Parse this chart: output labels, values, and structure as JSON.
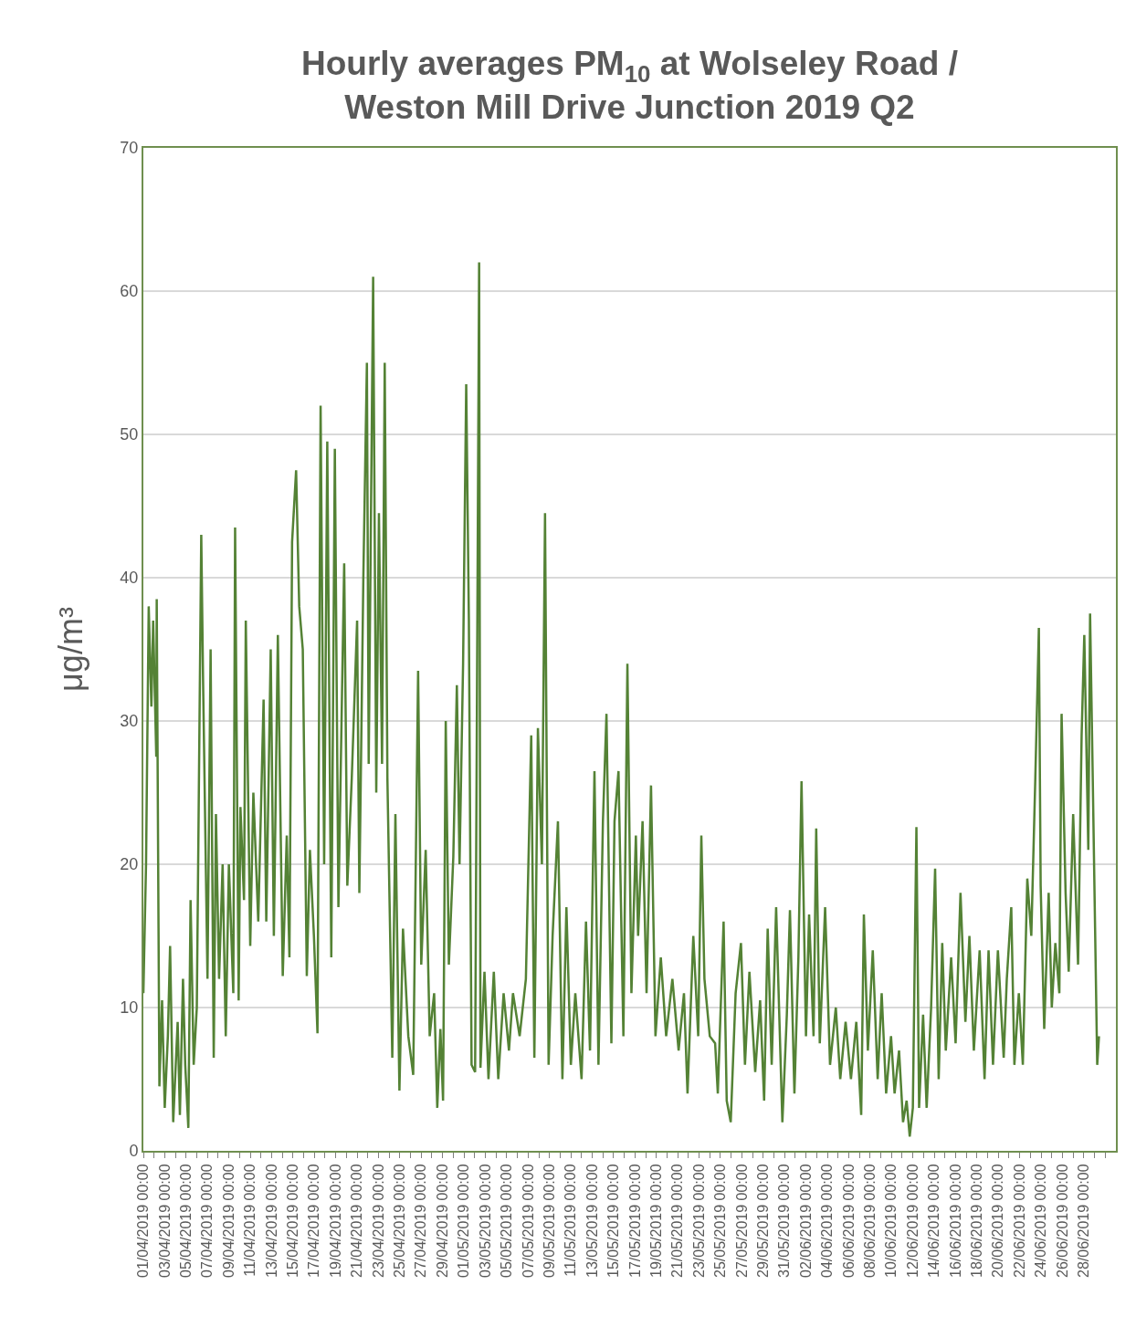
{
  "chart_data": {
    "type": "line",
    "title": "Hourly averages PM$_{10}$ at Wolseley Road /\nWeston Mill Drive Junction 2019 Q2",
    "ylabel": "μg/m³",
    "xlim": [
      "2019-04-01",
      "2019-07-01"
    ],
    "ylim": [
      0,
      70
    ],
    "yticks": [
      0,
      10,
      20,
      30,
      40,
      50,
      60,
      70
    ],
    "grid": "y",
    "marker": "none",
    "line_style": "solid",
    "xticks": [
      {
        "value": "2019-04-01",
        "label": "01/04/2019 00:00"
      },
      {
        "value": "2019-04-02",
        "label": null
      },
      {
        "value": "2019-04-03",
        "label": "03/04/2019 00:00"
      },
      {
        "value": "2019-04-04",
        "label": null
      },
      {
        "value": "2019-04-05",
        "label": "05/04/2019 00:00"
      },
      {
        "value": "2019-04-06",
        "label": null
      },
      {
        "value": "2019-04-07",
        "label": "07/04/2019 00:00"
      },
      {
        "value": "2019-04-08",
        "label": null
      },
      {
        "value": "2019-04-09",
        "label": "09/04/2019 00:00"
      },
      {
        "value": "2019-04-10",
        "label": null
      },
      {
        "value": "2019-04-11",
        "label": "11/04/2019 00:00"
      },
      {
        "value": "2019-04-12",
        "label": null
      },
      {
        "value": "2019-04-13",
        "label": "13/04/2019 00:00"
      },
      {
        "value": "2019-04-14",
        "label": null
      },
      {
        "value": "2019-04-15",
        "label": "15/04/2019 00:00"
      },
      {
        "value": "2019-04-16",
        "label": null
      },
      {
        "value": "2019-04-17",
        "label": "17/04/2019 00:00"
      },
      {
        "value": "2019-04-18",
        "label": null
      },
      {
        "value": "2019-04-19",
        "label": "19/04/2019 00:00"
      },
      {
        "value": "2019-04-20",
        "label": null
      },
      {
        "value": "2019-04-21",
        "label": "21/04/2019 00:00"
      },
      {
        "value": "2019-04-22",
        "label": null
      },
      {
        "value": "2019-04-23",
        "label": "23/04/2019 00:00"
      },
      {
        "value": "2019-04-24",
        "label": null
      },
      {
        "value": "2019-04-25",
        "label": "25/04/2019 00:00"
      },
      {
        "value": "2019-04-26",
        "label": null
      },
      {
        "value": "2019-04-27",
        "label": "27/04/2019 00:00"
      },
      {
        "value": "2019-04-28",
        "label": null
      },
      {
        "value": "2019-04-29",
        "label": "29/04/2019 00:00"
      },
      {
        "value": "2019-04-30",
        "label": null
      },
      {
        "value": "2019-05-01",
        "label": "01/05/2019 00:00"
      },
      {
        "value": "2019-05-02",
        "label": null
      },
      {
        "value": "2019-05-03",
        "label": "03/05/2019 00:00"
      },
      {
        "value": "2019-05-04",
        "label": null
      },
      {
        "value": "2019-05-05",
        "label": "05/05/2019 00:00"
      },
      {
        "value": "2019-05-06",
        "label": null
      },
      {
        "value": "2019-05-07",
        "label": "07/05/2019 00:00"
      },
      {
        "value": "2019-05-08",
        "label": null
      },
      {
        "value": "2019-05-09",
        "label": "09/05/2019 00:00"
      },
      {
        "value": "2019-05-10",
        "label": null
      },
      {
        "value": "2019-05-11",
        "label": "11/05/2019 00:00"
      },
      {
        "value": "2019-05-12",
        "label": null
      },
      {
        "value": "2019-05-13",
        "label": "13/05/2019 00:00"
      },
      {
        "value": "2019-05-14",
        "label": null
      },
      {
        "value": "2019-05-15",
        "label": "15/05/2019 00:00"
      },
      {
        "value": "2019-05-16",
        "label": null
      },
      {
        "value": "2019-05-17",
        "label": "17/05/2019 00:00"
      },
      {
        "value": "2019-05-18",
        "label": null
      },
      {
        "value": "2019-05-19",
        "label": "19/05/2019 00:00"
      },
      {
        "value": "2019-05-20",
        "label": null
      },
      {
        "value": "2019-05-21",
        "label": "21/05/2019 00:00"
      },
      {
        "value": "2019-05-22",
        "label": null
      },
      {
        "value": "2019-05-23",
        "label": "23/05/2019 00:00"
      },
      {
        "value": "2019-05-24",
        "label": null
      },
      {
        "value": "2019-05-25",
        "label": "25/05/2019 00:00"
      },
      {
        "value": "2019-05-26",
        "label": null
      },
      {
        "value": "2019-05-27",
        "label": "27/05/2019 00:00"
      },
      {
        "value": "2019-05-28",
        "label": null
      },
      {
        "value": "2019-05-29",
        "label": "29/05/2019 00:00"
      },
      {
        "value": "2019-05-30",
        "label": null
      },
      {
        "value": "2019-05-31",
        "label": "31/05/2019 00:00"
      },
      {
        "value": "2019-06-01",
        "label": null
      },
      {
        "value": "2019-06-02",
        "label": "02/06/2019 00:00"
      },
      {
        "value": "2019-06-03",
        "label": null
      },
      {
        "value": "2019-06-04",
        "label": "04/06/2019 00:00"
      },
      {
        "value": "2019-06-05",
        "label": null
      },
      {
        "value": "2019-06-06",
        "label": "06/06/2019 00:00"
      },
      {
        "value": "2019-06-07",
        "label": null
      },
      {
        "value": "2019-06-08",
        "label": "08/06/2019 00:00"
      },
      {
        "value": "2019-06-09",
        "label": null
      },
      {
        "value": "2019-06-10",
        "label": "10/06/2019 00:00"
      },
      {
        "value": "2019-06-11",
        "label": null
      },
      {
        "value": "2019-06-12",
        "label": "12/06/2019 00:00"
      },
      {
        "value": "2019-06-13",
        "label": null
      },
      {
        "value": "2019-06-14",
        "label": "14/06/2019 00:00"
      },
      {
        "value": "2019-06-15",
        "label": null
      },
      {
        "value": "2019-06-16",
        "label": "16/06/2019 00:00"
      },
      {
        "value": "2019-06-17",
        "label": null
      },
      {
        "value": "2019-06-18",
        "label": "18/06/2019 00:00"
      },
      {
        "value": "2019-06-19",
        "label": null
      },
      {
        "value": "2019-06-20",
        "label": "20/06/2019 00:00"
      },
      {
        "value": "2019-06-21",
        "label": null
      },
      {
        "value": "2019-06-22",
        "label": "22/06/2019 00:00"
      },
      {
        "value": "2019-06-23",
        "label": null
      },
      {
        "value": "2019-06-24",
        "label": "24/06/2019 00:00"
      },
      {
        "value": "2019-06-25",
        "label": null
      },
      {
        "value": "2019-06-26",
        "label": "26/06/2019 00:00"
      },
      {
        "value": "2019-06-27",
        "label": null
      },
      {
        "value": "2019-06-28",
        "label": "28/06/2019 00:00"
      },
      {
        "value": "2019-06-29",
        "label": null
      },
      {
        "value": "2019-06-30",
        "label": null
      }
    ],
    "series": [
      {
        "color": "#548235",
        "x": [
          "2019-04-01T00:00",
          "2019-04-01T06:00",
          "2019-04-01T12:00",
          "2019-04-01T18:00",
          "2019-04-01T22:00",
          "2019-04-02T05:00",
          "2019-04-02T06:00",
          "2019-04-02T12:00",
          "2019-04-02T18:00",
          "2019-04-03T00:00",
          "2019-04-03T07:00",
          "2019-04-03T12:00",
          "2019-04-03T19:00",
          "2019-04-04T05:00",
          "2019-04-04T10:00",
          "2019-04-04T17:00",
          "2019-04-04T22:00",
          "2019-04-05T05:00",
          "2019-04-05T10:00",
          "2019-04-05T17:00",
          "2019-04-06T00:00",
          "2019-04-06T10:00",
          "2019-04-06T14:00",
          "2019-04-07T00:00",
          "2019-04-07T07:00",
          "2019-04-07T14:00",
          "2019-04-07T19:00",
          "2019-04-08T02:00",
          "2019-04-08T10:00",
          "2019-04-08T17:00",
          "2019-04-09T00:00",
          "2019-04-09T10:00",
          "2019-04-09T14:00",
          "2019-04-09T22:00",
          "2019-04-10T02:00",
          "2019-04-10T10:00",
          "2019-04-10T14:00",
          "2019-04-11T00:00",
          "2019-04-11T07:00",
          "2019-04-11T18:00",
          "2019-04-12T06:00",
          "2019-04-12T12:00",
          "2019-04-12T22:00",
          "2019-04-13T05:00",
          "2019-04-13T14:00",
          "2019-04-14T01:00",
          "2019-04-14T10:00",
          "2019-04-14T16:00",
          "2019-04-14T22:00",
          "2019-04-15T07:00",
          "2019-04-15T14:00",
          "2019-04-15T22:00",
          "2019-04-16T07:00",
          "2019-04-16T14:00",
          "2019-04-16T23:00",
          "2019-04-17T07:00",
          "2019-04-17T14:00",
          "2019-04-17T22:00",
          "2019-04-18T05:00",
          "2019-04-18T14:00",
          "2019-04-18T22:00",
          "2019-04-19T06:00",
          "2019-04-19T19:00",
          "2019-04-20T02:00",
          "2019-04-20T12:00",
          "2019-04-21T00:00",
          "2019-04-21T05:00",
          "2019-04-21T14:00",
          "2019-04-21T22:00",
          "2019-04-22T02:00",
          "2019-04-22T12:00",
          "2019-04-22T19:00",
          "2019-04-23T01:00",
          "2019-04-23T08:00",
          "2019-04-23T14:00",
          "2019-04-23T20:00",
          "2019-04-24T07:00",
          "2019-04-24T14:00",
          "2019-04-24T23:00",
          "2019-04-25T07:00",
          "2019-04-25T19:00",
          "2019-04-26T06:00",
          "2019-04-26T17:00",
          "2019-04-27T00:00",
          "2019-04-27T10:00",
          "2019-04-27T19:00",
          "2019-04-28T05:00",
          "2019-04-28T12:00",
          "2019-04-28T19:00",
          "2019-04-29T01:00",
          "2019-04-29T07:00",
          "2019-04-29T14:00",
          "2019-04-30T00:00",
          "2019-04-30T08:00",
          "2019-04-30T14:00",
          "2019-04-30T22:00",
          "2019-05-01T05:00",
          "2019-05-01T11:00",
          "2019-05-01T17:00",
          "2019-05-02T01:00",
          "2019-05-02T10:00",
          "2019-05-02T13:00",
          "2019-05-02T22:00",
          "2019-05-03T07:00",
          "2019-05-03T19:00",
          "2019-05-04T05:00",
          "2019-05-04T17:00",
          "2019-05-05T05:00",
          "2019-05-05T14:00",
          "2019-05-06T05:00",
          "2019-05-06T19:00",
          "2019-05-07T07:00",
          "2019-05-07T14:00",
          "2019-05-07T22:00",
          "2019-05-08T07:00",
          "2019-05-08T14:00",
          "2019-05-08T22:00",
          "2019-05-09T07:00",
          "2019-05-09T19:00",
          "2019-05-10T05:00",
          "2019-05-10T14:00",
          "2019-05-11T00:00",
          "2019-05-11T10:00",
          "2019-05-12T00:00",
          "2019-05-12T10:00",
          "2019-05-12T19:00",
          "2019-05-13T05:00",
          "2019-05-13T14:00",
          "2019-05-14T00:00",
          "2019-05-14T08:00",
          "2019-05-14T19:00",
          "2019-05-15T02:00",
          "2019-05-15T11:00",
          "2019-05-15T22:00",
          "2019-05-16T07:00",
          "2019-05-16T16:00",
          "2019-05-17T02:00",
          "2019-05-17T07:00",
          "2019-05-17T17:00",
          "2019-05-18T02:00",
          "2019-05-18T12:00",
          "2019-05-18T22:00",
          "2019-05-19T10:00",
          "2019-05-19T22:00",
          "2019-05-20T12:00",
          "2019-05-21T02:00",
          "2019-05-21T14:00",
          "2019-05-21T22:00",
          "2019-05-22T11:00",
          "2019-05-22T22:00",
          "2019-05-23T05:00",
          "2019-05-23T12:00",
          "2019-05-24T00:00",
          "2019-05-24T12:00",
          "2019-05-24T18:00",
          "2019-05-25T07:00",
          "2019-05-25T14:00",
          "2019-05-25T23:00",
          "2019-05-26T10:00",
          "2019-05-26T22:00",
          "2019-05-27T07:00",
          "2019-05-27T17:00",
          "2019-05-28T06:00",
          "2019-05-28T17:00",
          "2019-05-29T02:00",
          "2019-05-29T10:00",
          "2019-05-29T19:00",
          "2019-05-30T05:00",
          "2019-05-30T19:00",
          "2019-05-31T05:00",
          "2019-05-31T12:00",
          "2019-05-31T22:00",
          "2019-06-01T07:00",
          "2019-06-01T14:00",
          "2019-06-02T00:00",
          "2019-06-02T07:00",
          "2019-06-02T17:00",
          "2019-06-02T23:00",
          "2019-06-03T07:00",
          "2019-06-03T19:00",
          "2019-06-04T06:00",
          "2019-06-04T19:00",
          "2019-06-05T05:00",
          "2019-06-05T17:00",
          "2019-06-06T05:00",
          "2019-06-06T17:00",
          "2019-06-07T04:00",
          "2019-06-07T10:00",
          "2019-06-07T19:00",
          "2019-06-08T06:00",
          "2019-06-08T17:00",
          "2019-06-09T02:00",
          "2019-06-09T12:00",
          "2019-06-09T23:00",
          "2019-06-10T07:00",
          "2019-06-10T17:00",
          "2019-06-11T02:00",
          "2019-06-11T10:00",
          "2019-06-11T17:00",
          "2019-06-12T00:00",
          "2019-06-12T08:00",
          "2019-06-12T14:00",
          "2019-06-12T23:00",
          "2019-06-13T07:00",
          "2019-06-13T17:00",
          "2019-06-14T02:00",
          "2019-06-14T10:00",
          "2019-06-14T18:00",
          "2019-06-15T02:00",
          "2019-06-15T14:00",
          "2019-06-16T00:00",
          "2019-06-16T11:00",
          "2019-06-16T22:00",
          "2019-06-17T07:00",
          "2019-06-17T17:00",
          "2019-06-18T06:00",
          "2019-06-18T17:00",
          "2019-06-19T02:00",
          "2019-06-19T12:00",
          "2019-06-19T23:00",
          "2019-06-20T12:00",
          "2019-06-20T19:00",
          "2019-06-21T05:00",
          "2019-06-21T12:00",
          "2019-06-21T22:00",
          "2019-06-22T07:00",
          "2019-06-22T17:00",
          "2019-06-23T02:00",
          "2019-06-23T11:00",
          "2019-06-23T19:00",
          "2019-06-23T23:00",
          "2019-06-24T07:00",
          "2019-06-24T17:00",
          "2019-06-25T00:00",
          "2019-06-25T08:00",
          "2019-06-25T17:00",
          "2019-06-25T22:00",
          "2019-06-26T07:00",
          "2019-06-26T14:00",
          "2019-06-27T00:00",
          "2019-06-27T11:00",
          "2019-06-27T19:00",
          "2019-06-28T01:00",
          "2019-06-28T10:00",
          "2019-06-28T14:00",
          "2019-06-28T20:00",
          "2019-06-29T06:00",
          "2019-06-29T10:00"
        ],
        "values": [
          11,
          20,
          38,
          31,
          37,
          27.5,
          38.5,
          4.5,
          10.5,
          3,
          8,
          14.3,
          2,
          9,
          2.5,
          12,
          6,
          1.6,
          17.5,
          6,
          10,
          43,
          33,
          12,
          35,
          6.5,
          23.5,
          12,
          20,
          8,
          20,
          11,
          43.5,
          10.5,
          24,
          17.5,
          37,
          14.3,
          25,
          16,
          31.5,
          16,
          35,
          15,
          36,
          12.2,
          22,
          13.5,
          42.5,
          47.5,
          38,
          35,
          12.2,
          21,
          15,
          8.2,
          52,
          20,
          49.5,
          13.5,
          49,
          17,
          41,
          18.5,
          26,
          37,
          18,
          40,
          55,
          27,
          61,
          25,
          44.5,
          27,
          55,
          26,
          6.5,
          23.5,
          4.2,
          15.5,
          8,
          5.3,
          33.5,
          13,
          21,
          8,
          11,
          3,
          8.5,
          3.5,
          30,
          13,
          20.5,
          32.5,
          20,
          34,
          53.5,
          37,
          6,
          5.5,
          62,
          5.8,
          12.5,
          5,
          12.5,
          5,
          11,
          7,
          11,
          8,
          12,
          29,
          6.5,
          29.5,
          20,
          44.5,
          6,
          15,
          23,
          5,
          17,
          6,
          11,
          5,
          16,
          7,
          26.5,
          6,
          23,
          30.5,
          7.5,
          23,
          26.5,
          8,
          34,
          11,
          22,
          15,
          23,
          11,
          25.5,
          8,
          13.5,
          8,
          12,
          7,
          11,
          4,
          15,
          8,
          22,
          12,
          8,
          7.5,
          4,
          16,
          3.5,
          2,
          11,
          14.5,
          6,
          12.5,
          5.5,
          10.5,
          3.5,
          15.5,
          6,
          17,
          2,
          9.5,
          16.8,
          4,
          13.5,
          25.8,
          8,
          16.5,
          8,
          22.5,
          7.5,
          17,
          6,
          10,
          5,
          9,
          5,
          9,
          2.5,
          16.5,
          7,
          14,
          5,
          11,
          4,
          8,
          4,
          7,
          2,
          3.5,
          1,
          3,
          22.6,
          3,
          9.5,
          3,
          10,
          19.7,
          5,
          14.5,
          7,
          13.5,
          7.5,
          18,
          9,
          15,
          7,
          14,
          5,
          14,
          6,
          14,
          6.5,
          12,
          17,
          6,
          11,
          6,
          19,
          15,
          26,
          36.5,
          18.5,
          8.5,
          18,
          10,
          14.5,
          11,
          30.5,
          18,
          12.5,
          23.5,
          13,
          29,
          36,
          21,
          37.5,
          26,
          6,
          8
        ]
      }
    ]
  }
}
